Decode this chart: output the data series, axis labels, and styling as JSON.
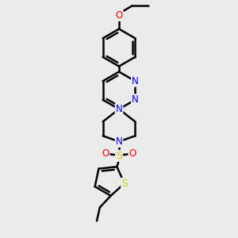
{
  "bg_color": "#ebebeb",
  "bond_color": "#000000",
  "bond_width": 1.8,
  "atom_colors": {
    "N": "#0000ff",
    "O": "#ff0000",
    "S": "#cccc00",
    "C": "#000000"
  },
  "font_size": 8.5,
  "dbo": 0.1
}
